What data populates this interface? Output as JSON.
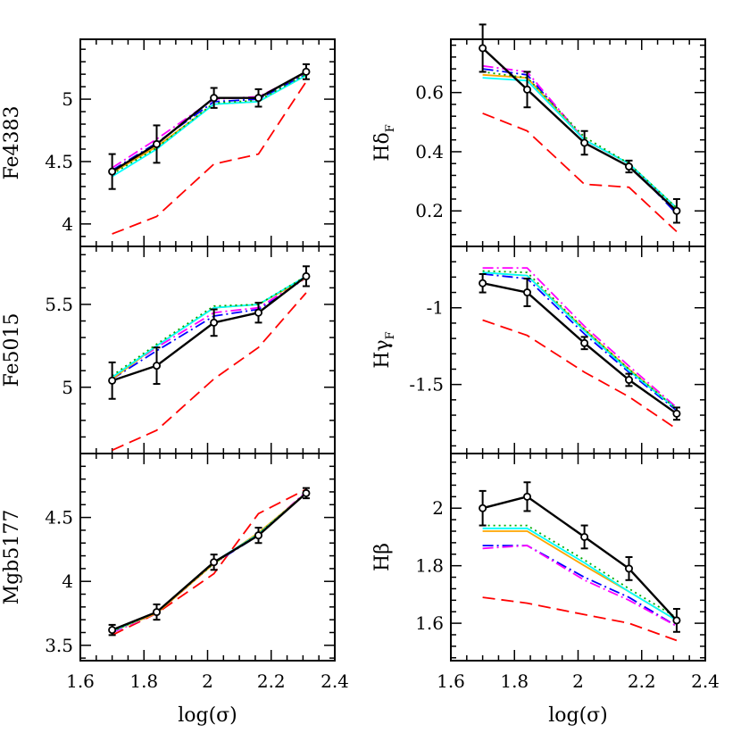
{
  "chart_data": [
    {
      "type": "line",
      "panel": "left-top",
      "ylabel": "Fe4383",
      "ylim": [
        3.82,
        5.48
      ],
      "yticks": [
        4,
        4.5,
        5
      ],
      "xlim": [
        1.6,
        2.4
      ],
      "xticks": [
        1.6,
        1.8,
        2,
        2.2,
        2.4
      ],
      "show_xticklabels": false,
      "x": [
        1.7,
        1.84,
        2.02,
        2.16,
        2.31
      ],
      "errors": [
        0.14,
        0.15,
        0.08,
        0.07,
        0.06
      ],
      "series": [
        {
          "color": "#000000",
          "dash": "solid",
          "markers": true,
          "values": [
            4.42,
            4.64,
            5.01,
            5.01,
            5.22
          ]
        },
        {
          "color": "#ff0000",
          "dash": "long-dash",
          "values": [
            3.92,
            4.06,
            4.48,
            4.56,
            5.14
          ]
        },
        {
          "color": "#0000ff",
          "dash": "dash-dot",
          "values": [
            4.43,
            4.65,
            4.98,
            5.0,
            5.2
          ]
        },
        {
          "color": "#ff00ff",
          "dash": "dash-dot",
          "values": [
            4.45,
            4.68,
            5.0,
            5.02,
            5.21
          ]
        },
        {
          "color": "#ffa500",
          "dash": "solid",
          "values": [
            4.41,
            4.62,
            4.96,
            4.98,
            5.19
          ]
        },
        {
          "color": "#00ffff",
          "dash": "solid",
          "values": [
            4.38,
            4.6,
            4.96,
            4.98,
            5.19
          ]
        },
        {
          "color": "#00aa00",
          "dash": "dotted",
          "values": [
            4.4,
            4.61,
            4.97,
            4.99,
            5.2
          ]
        }
      ]
    },
    {
      "type": "line",
      "panel": "right-top",
      "ylabel": "Hδ",
      "ylabel_sub": "F",
      "ylim": [
        0.08,
        0.78
      ],
      "yticks": [
        0.2,
        0.4,
        0.6
      ],
      "xlim": [
        1.6,
        2.4
      ],
      "xticks": [
        1.6,
        1.8,
        2,
        2.2,
        2.4
      ],
      "show_xticklabels": false,
      "x": [
        1.7,
        1.84,
        2.02,
        2.16,
        2.31
      ],
      "errors": [
        0.08,
        0.06,
        0.04,
        0.02,
        0.04
      ],
      "series": [
        {
          "color": "#000000",
          "dash": "solid",
          "markers": true,
          "values": [
            0.75,
            0.61,
            0.43,
            0.35,
            0.2
          ]
        },
        {
          "color": "#ff0000",
          "dash": "long-dash",
          "values": [
            0.53,
            0.47,
            0.29,
            0.28,
            0.13
          ]
        },
        {
          "color": "#0000ff",
          "dash": "dash-dot",
          "values": [
            0.68,
            0.66,
            0.44,
            0.36,
            0.19
          ]
        },
        {
          "color": "#ff00ff",
          "dash": "dash-dot",
          "values": [
            0.69,
            0.67,
            0.44,
            0.36,
            0.2
          ]
        },
        {
          "color": "#ffa500",
          "dash": "solid",
          "values": [
            0.66,
            0.65,
            0.44,
            0.36,
            0.21
          ]
        },
        {
          "color": "#00ffff",
          "dash": "solid",
          "values": [
            0.65,
            0.64,
            0.44,
            0.36,
            0.21
          ]
        },
        {
          "color": "#00aa00",
          "dash": "dotted",
          "values": [
            0.67,
            0.65,
            0.45,
            0.36,
            0.21
          ]
        }
      ]
    },
    {
      "type": "line",
      "panel": "left-middle",
      "ylabel": "Fe5015",
      "ylim": [
        4.6,
        5.85
      ],
      "yticks": [
        5,
        5.5
      ],
      "xlim": [
        1.6,
        2.4
      ],
      "xticks": [
        1.6,
        1.8,
        2,
        2.2,
        2.4
      ],
      "show_xticklabels": false,
      "x": [
        1.7,
        1.84,
        2.02,
        2.16,
        2.31
      ],
      "errors": [
        0.11,
        0.11,
        0.08,
        0.06,
        0.06
      ],
      "series": [
        {
          "color": "#000000",
          "dash": "solid",
          "markers": true,
          "values": [
            5.04,
            5.13,
            5.39,
            5.45,
            5.67
          ]
        },
        {
          "color": "#ff0000",
          "dash": "long-dash",
          "values": [
            4.62,
            4.74,
            5.05,
            5.24,
            5.57
          ]
        },
        {
          "color": "#0000ff",
          "dash": "dash-dot",
          "values": [
            5.05,
            5.22,
            5.43,
            5.47,
            5.66
          ]
        },
        {
          "color": "#ff00ff",
          "dash": "dash-dot",
          "values": [
            5.06,
            5.24,
            5.45,
            5.48,
            5.66
          ]
        },
        {
          "color": "#ffa500",
          "dash": "solid",
          "values": [
            5.05,
            5.25,
            5.48,
            5.5,
            5.66
          ]
        },
        {
          "color": "#00ffff",
          "dash": "solid",
          "values": [
            5.06,
            5.25,
            5.48,
            5.5,
            5.67
          ]
        },
        {
          "color": "#00aa00",
          "dash": "dotted",
          "values": [
            5.07,
            5.26,
            5.49,
            5.5,
            5.67
          ]
        }
      ]
    },
    {
      "type": "line",
      "panel": "right-middle",
      "ylabel": "Hγ",
      "ylabel_sub": "F",
      "ylim": [
        -1.95,
        -0.6
      ],
      "yticks": [
        -1.5,
        -1
      ],
      "xlim": [
        1.6,
        2.4
      ],
      "xticks": [
        1.6,
        1.8,
        2,
        2.2,
        2.4
      ],
      "show_xticklabels": false,
      "x": [
        1.7,
        1.84,
        2.02,
        2.16,
        2.31
      ],
      "errors": [
        0.06,
        0.09,
        0.04,
        0.04,
        0.04
      ],
      "series": [
        {
          "color": "#000000",
          "dash": "solid",
          "markers": true,
          "values": [
            -0.84,
            -0.9,
            -1.23,
            -1.47,
            -1.69
          ]
        },
        {
          "color": "#ff0000",
          "dash": "long-dash",
          "values": [
            -1.08,
            -1.18,
            -1.42,
            -1.58,
            -1.79
          ]
        },
        {
          "color": "#0000ff",
          "dash": "dash-dot",
          "values": [
            -0.78,
            -0.81,
            -1.17,
            -1.42,
            -1.67
          ]
        },
        {
          "color": "#ff00ff",
          "dash": "dash-dot",
          "values": [
            -0.74,
            -0.74,
            -1.12,
            -1.38,
            -1.65
          ]
        },
        {
          "color": "#ffa500",
          "dash": "solid",
          "values": [
            -0.77,
            -0.79,
            -1.14,
            -1.4,
            -1.66
          ]
        },
        {
          "color": "#00ffff",
          "dash": "solid",
          "values": [
            -0.77,
            -0.79,
            -1.15,
            -1.41,
            -1.66
          ]
        },
        {
          "color": "#00aa00",
          "dash": "dotted",
          "values": [
            -0.76,
            -0.77,
            -1.14,
            -1.4,
            -1.66
          ]
        }
      ]
    },
    {
      "type": "line",
      "panel": "left-bottom",
      "ylabel": "Mgb5177",
      "ylim": [
        3.38,
        5.0
      ],
      "yticks": [
        3.5,
        4,
        4.5
      ],
      "xlim": [
        1.6,
        2.4
      ],
      "xticks": [
        1.6,
        1.8,
        2,
        2.2,
        2.4
      ],
      "xticklabels": [
        "1.6",
        "1.8",
        "2",
        "2.2",
        "2.4"
      ],
      "show_xticklabels": true,
      "xlabel": "log(σ)",
      "x": [
        1.7,
        1.84,
        2.02,
        2.16,
        2.31
      ],
      "errors": [
        0.04,
        0.06,
        0.06,
        0.06,
        0.04
      ],
      "series": [
        {
          "color": "#000000",
          "dash": "solid",
          "markers": true,
          "values": [
            3.62,
            3.76,
            4.15,
            4.36,
            4.69
          ]
        },
        {
          "color": "#ff0000",
          "dash": "long-dash",
          "values": [
            3.58,
            3.75,
            4.06,
            4.53,
            4.72
          ]
        },
        {
          "color": "#0000ff",
          "dash": "dash-dot",
          "values": [
            3.6,
            3.75,
            4.14,
            4.36,
            4.7
          ]
        },
        {
          "color": "#ff00ff",
          "dash": "dash-dot",
          "values": [
            3.6,
            3.75,
            4.14,
            4.37,
            4.7
          ]
        },
        {
          "color": "#ffa500",
          "dash": "solid",
          "values": [
            3.61,
            3.75,
            4.14,
            4.38,
            4.69
          ]
        },
        {
          "color": "#00ffff",
          "dash": "solid",
          "values": [
            3.61,
            3.76,
            4.15,
            4.37,
            4.69
          ]
        },
        {
          "color": "#00aa00",
          "dash": "dotted",
          "values": [
            3.61,
            3.76,
            4.14,
            4.37,
            4.69
          ]
        }
      ]
    },
    {
      "type": "line",
      "panel": "right-bottom",
      "ylabel": "Hβ",
      "ylim": [
        1.47,
        2.19
      ],
      "yticks": [
        1.6,
        1.8,
        2
      ],
      "xlim": [
        1.6,
        2.4
      ],
      "xticks": [
        1.6,
        1.8,
        2,
        2.2,
        2.4
      ],
      "xticklabels": [
        "1.6",
        "1.8",
        "2",
        "2.2",
        "2.4"
      ],
      "show_xticklabels": true,
      "xlabel": "log(σ)",
      "x": [
        1.7,
        1.84,
        2.02,
        2.16,
        2.31
      ],
      "errors": [
        0.06,
        0.05,
        0.04,
        0.04,
        0.04
      ],
      "series": [
        {
          "color": "#000000",
          "dash": "solid",
          "markers": true,
          "values": [
            2.0,
            2.04,
            1.9,
            1.79,
            1.61
          ]
        },
        {
          "color": "#ff0000",
          "dash": "long-dash",
          "values": [
            1.69,
            1.67,
            1.63,
            1.6,
            1.54
          ]
        },
        {
          "color": "#0000ff",
          "dash": "dash-dot",
          "values": [
            1.87,
            1.87,
            1.76,
            1.69,
            1.59
          ]
        },
        {
          "color": "#ff00ff",
          "dash": "dash-dot",
          "values": [
            1.86,
            1.87,
            1.75,
            1.68,
            1.59
          ]
        },
        {
          "color": "#ffa500",
          "dash": "solid",
          "values": [
            1.92,
            1.92,
            1.8,
            1.71,
            1.61
          ]
        },
        {
          "color": "#00ffff",
          "dash": "solid",
          "values": [
            1.93,
            1.93,
            1.81,
            1.71,
            1.61
          ]
        },
        {
          "color": "#00aa00",
          "dash": "dotted",
          "values": [
            1.94,
            1.94,
            1.82,
            1.72,
            1.62
          ]
        }
      ]
    }
  ]
}
